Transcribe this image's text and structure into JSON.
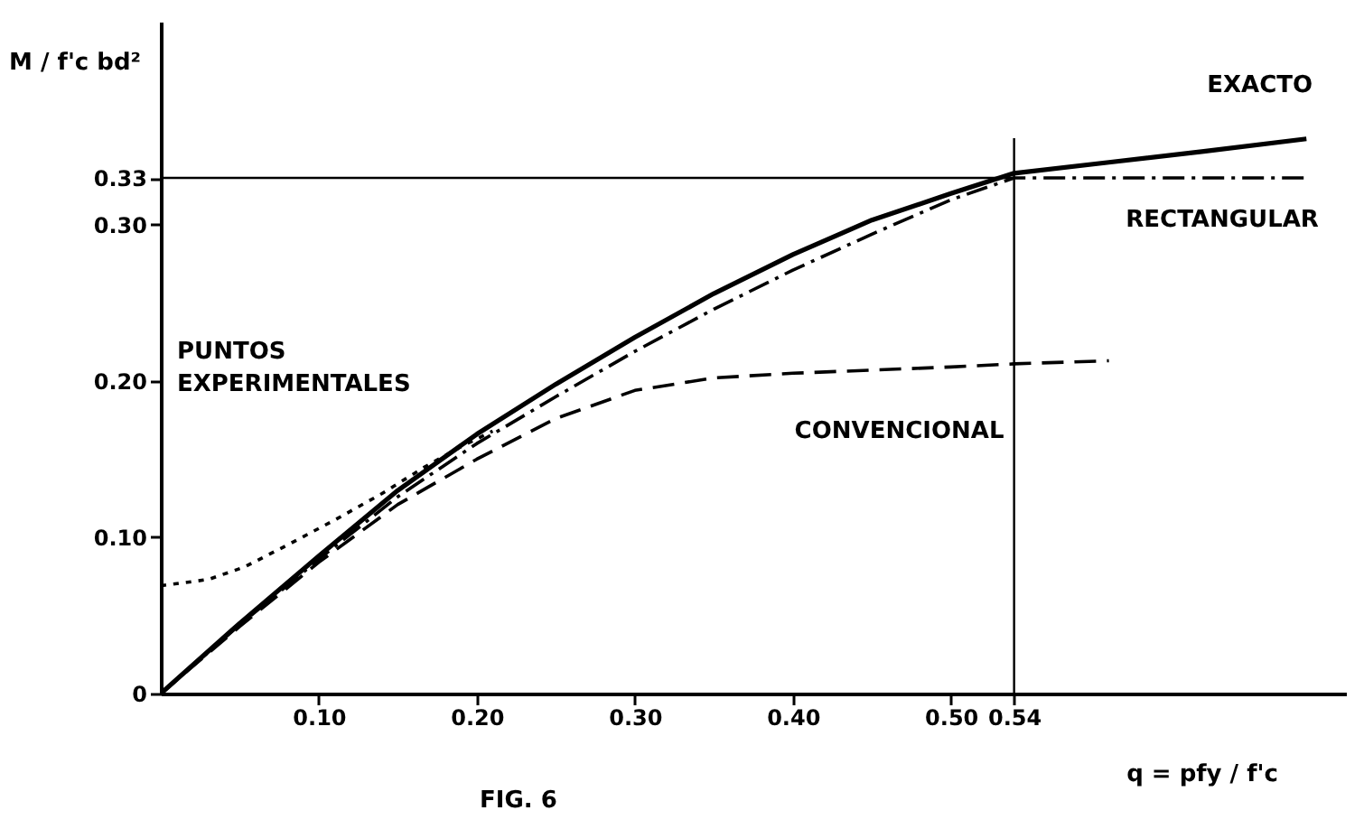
{
  "chart_data": {
    "type": "line",
    "title": "FIG. 6",
    "xlabel": "q = pfy / f'c",
    "ylabel": "M / f'c bd²",
    "xlim": [
      0,
      0.75
    ],
    "ylim": [
      0,
      0.43
    ],
    "xticks": [
      {
        "value": 0.1,
        "label": "0.10"
      },
      {
        "value": 0.2,
        "label": "0.20"
      },
      {
        "value": 0.3,
        "label": "0.30"
      },
      {
        "value": 0.4,
        "label": "0.40"
      },
      {
        "value": 0.5,
        "label": "0.50"
      },
      0.54
    ],
    "yticks": [
      0,
      {
        "value": 0.1,
        "label": "0.10"
      },
      {
        "value": 0.2,
        "label": "0.20"
      },
      {
        "value": 0.3,
        "label": "0.30"
      },
      0.33
    ],
    "ref_lines": [
      {
        "axis": "y",
        "value": 0.33,
        "color": "#000000"
      },
      {
        "axis": "x",
        "value": 0.54,
        "color": "#000000"
      }
    ],
    "series": [
      {
        "name": "EXACTO",
        "color": "#000000",
        "line_style": "solid",
        "x": [
          0,
          0.05,
          0.1,
          0.15,
          0.2,
          0.25,
          0.3,
          0.35,
          0.4,
          0.45,
          0.5,
          0.54,
          0.6,
          0.66,
          0.725
        ],
        "values": [
          0,
          0.045,
          0.088,
          0.13,
          0.166,
          0.198,
          0.228,
          0.256,
          0.281,
          0.303,
          0.32,
          0.333,
          0.34,
          0.347,
          0.355
        ]
      },
      {
        "name": "RECTANGULAR",
        "color": "#000000",
        "line_style": "dashdot",
        "x": [
          0,
          0.05,
          0.1,
          0.15,
          0.2,
          0.25,
          0.3,
          0.35,
          0.4,
          0.45,
          0.5,
          0.54,
          0.6,
          0.66,
          0.725
        ],
        "values": [
          0,
          0.044,
          0.086,
          0.126,
          0.16,
          0.19,
          0.219,
          0.246,
          0.271,
          0.294,
          0.316,
          0.33,
          0.33,
          0.33,
          0.33
        ]
      },
      {
        "name": "CONVENCIONAL",
        "color": "#000000",
        "line_style": "dashed",
        "x": [
          0,
          0.05,
          0.1,
          0.15,
          0.2,
          0.25,
          0.3,
          0.35,
          0.4,
          0.45,
          0.5,
          0.54,
          0.6
        ],
        "values": [
          0,
          0.043,
          0.084,
          0.121,
          0.15,
          0.176,
          0.194,
          0.202,
          0.205,
          0.207,
          0.209,
          0.211,
          0.213
        ]
      },
      {
        "name": "PUNTOS EXPERIMENTALES",
        "color": "#000000",
        "line_style": "dotted",
        "x": [
          0,
          0.03,
          0.053,
          0.08,
          0.11,
          0.14,
          0.167,
          0.19,
          0.21
        ],
        "values": [
          0.069,
          0.073,
          0.081,
          0.095,
          0.111,
          0.128,
          0.145,
          0.158,
          0.168
        ]
      }
    ]
  }
}
